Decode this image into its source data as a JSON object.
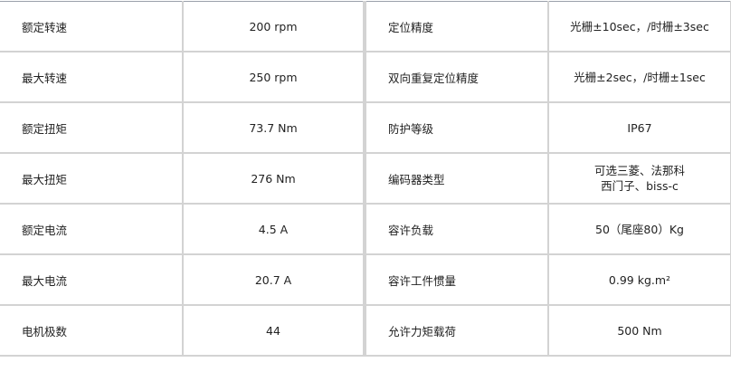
{
  "left_table": [
    {
      "label": "额定转速",
      "value": "200 rpm"
    },
    {
      "label": "最大转速",
      "value": "250 rpm"
    },
    {
      "label": "额定扭矩",
      "value": "73.7 Nm"
    },
    {
      "label": "最大扭矩",
      "value": "276 Nm"
    },
    {
      "label": "额定电流",
      "value": "4.5 A"
    },
    {
      "label": "最大电流",
      "value": "20.7 A"
    },
    {
      "label": "电机极数",
      "value": "44"
    }
  ],
  "right_table": [
    {
      "label": "定位精度",
      "value": "光栅±10sec，/时栅±3sec"
    },
    {
      "label": "双向重复定位精度",
      "value": "光栅±2sec，/时栅±1sec"
    },
    {
      "label": "防护等级",
      "value": "IP67"
    },
    {
      "label": "编码器类型",
      "value": "可选三菱、法那科",
      "value_line2": "西门子、biss-c"
    },
    {
      "label": "容许负载",
      "value": "50（尾座80）Kg"
    },
    {
      "label": "容许工件惯量",
      "value": "0.99 kg.m²"
    },
    {
      "label": "允许力矩载荷",
      "value": "500 Nm"
    }
  ]
}
